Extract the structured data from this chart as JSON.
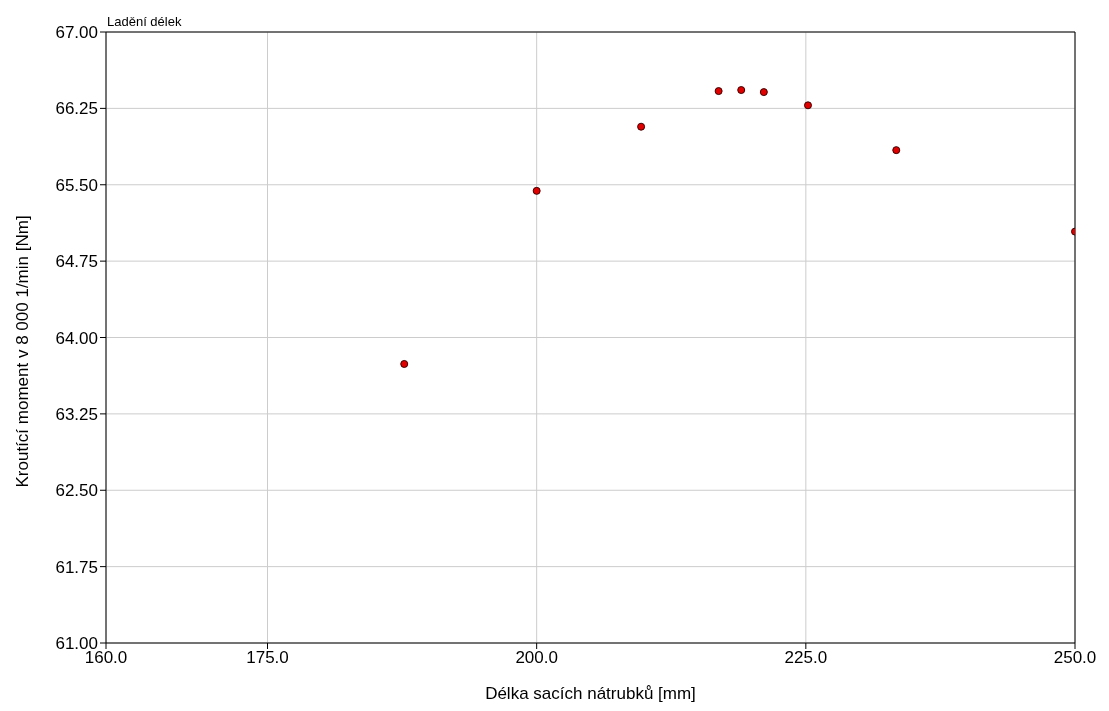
{
  "chart_data": {
    "type": "scatter",
    "title": "Ladění délek",
    "xlabel": "Délka sacích nátrubků [mm]",
    "ylabel": "Kroutící moment v 8 000 1/min [Nm]",
    "x": [
      187.7,
      200,
      209.7,
      216.9,
      219.0,
      221.1,
      225.2,
      233.4,
      250
    ],
    "series": [
      {
        "color": "#e00000",
        "values": [
          63.74,
          65.44,
          66.07,
          66.42,
          66.43,
          66.41,
          66.28,
          65.84,
          65.04
        ]
      }
    ],
    "xlim": [
      160,
      250
    ],
    "ylim": [
      61,
      67
    ],
    "xticks": [
      {
        "value": 160,
        "label": "160.0"
      },
      {
        "value": 175,
        "label": "175.0"
      },
      {
        "value": 200,
        "label": "200.0"
      },
      {
        "value": 225,
        "label": "225.0"
      },
      {
        "value": 250,
        "label": "250.0"
      }
    ],
    "yticks": [
      {
        "value": 61,
        "label": "61.00"
      },
      {
        "value": 61.75,
        "label": "61.75"
      },
      {
        "value": 62.5,
        "label": "62.50"
      },
      {
        "value": 63.25,
        "label": "63.25"
      },
      {
        "value": 64,
        "label": "64.00"
      },
      {
        "value": 64.75,
        "label": "64.75"
      },
      {
        "value": 65.5,
        "label": "65.50"
      },
      {
        "value": 66.25,
        "label": "66.25"
      },
      {
        "value": 67,
        "label": "67.00"
      }
    ],
    "grid": true,
    "marker": "circle"
  }
}
